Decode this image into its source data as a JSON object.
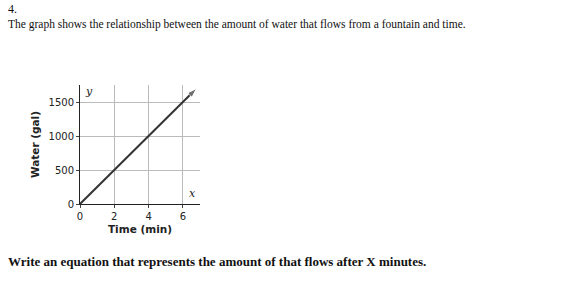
{
  "chart_data": {
    "type": "line",
    "annotations": [
      "4.",
      "The graph shows the relationship between the amount of water that flows from a fountain and time.",
      "Write an equation that represents the amount of that flows after X minutes."
    ],
    "axis_letters": {
      "x": "x",
      "y": "y"
    },
    "x_label": "Time (min)",
    "y_label": "Water (gal)",
    "x": [
      0,
      6.8
    ],
    "values": [
      0,
      1700
    ],
    "color": "#333333",
    "marker": "arrow",
    "line_style": "solid",
    "xlim": [
      0,
      7
    ],
    "ylim": [
      0,
      1750
    ],
    "xticks": [
      0,
      2,
      4,
      6
    ],
    "yticks": [
      0,
      500,
      1000,
      1500
    ],
    "grid": true
  }
}
